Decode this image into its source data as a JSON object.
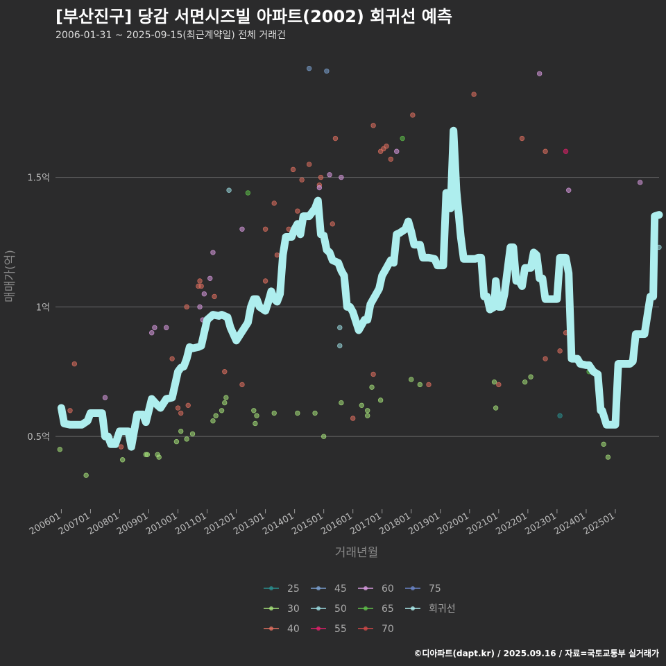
{
  "title": "[부산진구] 당감 서면시즈빌 아파트(2002) 회귀선 예측",
  "subtitle": "2006-01-31 ~ 2025-09-15(최근계약일) 전체 거래건",
  "footer": "©디아파트(dapt.kr) / 2025.09.16 / 자료=국토교통부 실거래가",
  "colors": {
    "background": "#2b2b2c",
    "grid": "#6a6a6a",
    "regression": "#aeeeee",
    "s25": "#2a8f8f",
    "s30": "#a6e27a",
    "s40": "#e07060",
    "s45": "#7aa0d0",
    "s50": "#9adbe0",
    "s55": "#e0206a",
    "s60": "#d89ae0",
    "s65": "#5fc04a",
    "s70": "#d04848",
    "s75": "#6a85c8"
  },
  "chart_data": {
    "type": "scatter",
    "title": "[부산진구] 당감 서면시즈빌 아파트(2002) 회귀선 예측",
    "xlabel": "거래년월",
    "ylabel": "매매가(억)",
    "xlim": [
      2005.8,
      2026.5
    ],
    "ylim": [
      0.23,
      1.97
    ],
    "y_ticks": [
      {
        "value": 0.5,
        "label": "0.5억"
      },
      {
        "value": 1.0,
        "label": "1억"
      },
      {
        "value": 1.5,
        "label": "1.5억"
      }
    ],
    "x_ticks": [
      {
        "value": 2006.0,
        "label": "200601"
      },
      {
        "value": 2007.0,
        "label": "200701"
      },
      {
        "value": 2008.0,
        "label": "200801"
      },
      {
        "value": 2009.0,
        "label": "200901"
      },
      {
        "value": 2010.0,
        "label": "201001"
      },
      {
        "value": 2011.0,
        "label": "201101"
      },
      {
        "value": 2012.0,
        "label": "201201"
      },
      {
        "value": 2013.0,
        "label": "201301"
      },
      {
        "value": 2014.0,
        "label": "201401"
      },
      {
        "value": 2015.0,
        "label": "201501"
      },
      {
        "value": 2016.0,
        "label": "201601"
      },
      {
        "value": 2017.0,
        "label": "201701"
      },
      {
        "value": 2018.0,
        "label": "201801"
      },
      {
        "value": 2019.0,
        "label": "201901"
      },
      {
        "value": 2020.0,
        "label": "202001"
      },
      {
        "value": 2021.0,
        "label": "202101"
      },
      {
        "value": 2022.0,
        "label": "202201"
      },
      {
        "value": 2023.0,
        "label": "202301"
      },
      {
        "value": 2024.0,
        "label": "202401"
      },
      {
        "value": 2025.0,
        "label": "202501"
      }
    ],
    "legend": {
      "position": "bottom",
      "entries": [
        {
          "key": "s25",
          "label": "25"
        },
        {
          "key": "s45",
          "label": "45"
        },
        {
          "key": "s60",
          "label": "60"
        },
        {
          "key": "s75",
          "label": "75"
        },
        {
          "key": "s30",
          "label": "30"
        },
        {
          "key": "s50",
          "label": "50"
        },
        {
          "key": "s65",
          "label": "65"
        },
        {
          "key": "regression",
          "label": "회귀선"
        },
        {
          "key": "s40",
          "label": "40"
        },
        {
          "key": "s55",
          "label": "55"
        },
        {
          "key": "s70",
          "label": "70"
        }
      ]
    },
    "regression": [
      [
        2006.0,
        0.61
      ],
      [
        2006.1,
        0.55
      ],
      [
        2006.3,
        0.545
      ],
      [
        2006.7,
        0.545
      ],
      [
        2006.9,
        0.56
      ],
      [
        2007.0,
        0.59
      ],
      [
        2007.4,
        0.59
      ],
      [
        2007.5,
        0.5
      ],
      [
        2007.6,
        0.5
      ],
      [
        2007.7,
        0.47
      ],
      [
        2007.85,
        0.47
      ],
      [
        2008.0,
        0.52
      ],
      [
        2008.3,
        0.52
      ],
      [
        2008.4,
        0.46
      ],
      [
        2008.6,
        0.585
      ],
      [
        2008.8,
        0.585
      ],
      [
        2008.9,
        0.555
      ],
      [
        2009.0,
        0.6
      ],
      [
        2009.1,
        0.645
      ],
      [
        2009.3,
        0.62
      ],
      [
        2009.4,
        0.61
      ],
      [
        2009.6,
        0.645
      ],
      [
        2009.8,
        0.65
      ],
      [
        2010.0,
        0.75
      ],
      [
        2010.1,
        0.765
      ],
      [
        2010.2,
        0.77
      ],
      [
        2010.3,
        0.8
      ],
      [
        2010.4,
        0.845
      ],
      [
        2010.5,
        0.84
      ],
      [
        2010.7,
        0.845
      ],
      [
        2010.8,
        0.85
      ],
      [
        2010.9,
        0.9
      ],
      [
        2011.0,
        0.95
      ],
      [
        2011.2,
        0.97
      ],
      [
        2011.4,
        0.965
      ],
      [
        2011.5,
        0.97
      ],
      [
        2011.7,
        0.96
      ],
      [
        2011.8,
        0.92
      ],
      [
        2012.0,
        0.87
      ],
      [
        2012.2,
        0.905
      ],
      [
        2012.4,
        0.94
      ],
      [
        2012.5,
        1.0
      ],
      [
        2012.6,
        1.03
      ],
      [
        2012.7,
        1.03
      ],
      [
        2012.8,
        1.0
      ],
      [
        2013.0,
        0.985
      ],
      [
        2013.1,
        1.02
      ],
      [
        2013.2,
        1.06
      ],
      [
        2013.3,
        1.03
      ],
      [
        2013.4,
        1.02
      ],
      [
        2013.5,
        1.05
      ],
      [
        2013.6,
        1.2
      ],
      [
        2013.7,
        1.27
      ],
      [
        2013.9,
        1.27
      ],
      [
        2014.0,
        1.3
      ],
      [
        2014.1,
        1.32
      ],
      [
        2014.2,
        1.28
      ],
      [
        2014.3,
        1.35
      ],
      [
        2014.5,
        1.35
      ],
      [
        2014.7,
        1.38
      ],
      [
        2014.8,
        1.41
      ],
      [
        2014.9,
        1.28
      ],
      [
        2015.0,
        1.275
      ],
      [
        2015.1,
        1.22
      ],
      [
        2015.2,
        1.21
      ],
      [
        2015.3,
        1.18
      ],
      [
        2015.5,
        1.17
      ],
      [
        2015.6,
        1.14
      ],
      [
        2015.7,
        1.12
      ],
      [
        2015.8,
        1.0
      ],
      [
        2015.9,
        1.0
      ],
      [
        2016.0,
        0.98
      ],
      [
        2016.2,
        0.91
      ],
      [
        2016.4,
        0.95
      ],
      [
        2016.5,
        0.95
      ],
      [
        2016.6,
        1.01
      ],
      [
        2016.7,
        1.03
      ],
      [
        2016.8,
        1.05
      ],
      [
        2016.9,
        1.07
      ],
      [
        2017.0,
        1.12
      ],
      [
        2017.1,
        1.14
      ],
      [
        2017.3,
        1.18
      ],
      [
        2017.4,
        1.17
      ],
      [
        2017.5,
        1.28
      ],
      [
        2017.6,
        1.285
      ],
      [
        2017.8,
        1.3
      ],
      [
        2017.9,
        1.33
      ],
      [
        2018.0,
        1.29
      ],
      [
        2018.1,
        1.24
      ],
      [
        2018.3,
        1.24
      ],
      [
        2018.4,
        1.19
      ],
      [
        2018.6,
        1.19
      ],
      [
        2018.8,
        1.185
      ],
      [
        2018.9,
        1.16
      ],
      [
        2019.1,
        1.16
      ],
      [
        2019.2,
        1.44
      ],
      [
        2019.35,
        1.38
      ],
      [
        2019.45,
        1.68
      ],
      [
        2019.55,
        1.45
      ],
      [
        2019.7,
        1.27
      ],
      [
        2019.8,
        1.185
      ],
      [
        2020.0,
        1.185
      ],
      [
        2020.2,
        1.185
      ],
      [
        2020.3,
        1.19
      ],
      [
        2020.4,
        1.19
      ],
      [
        2020.5,
        1.04
      ],
      [
        2020.6,
        1.04
      ],
      [
        2020.7,
        0.99
      ],
      [
        2020.85,
        1.0
      ],
      [
        2020.9,
        1.1
      ],
      [
        2021.0,
        1.0
      ],
      [
        2021.1,
        1.0
      ],
      [
        2021.2,
        1.05
      ],
      [
        2021.3,
        1.14
      ],
      [
        2021.4,
        1.23
      ],
      [
        2021.5,
        1.23
      ],
      [
        2021.6,
        1.1
      ],
      [
        2021.7,
        1.1
      ],
      [
        2021.8,
        1.08
      ],
      [
        2021.9,
        1.15
      ],
      [
        2022.1,
        1.15
      ],
      [
        2022.2,
        1.21
      ],
      [
        2022.3,
        1.2
      ],
      [
        2022.4,
        1.11
      ],
      [
        2022.5,
        1.11
      ],
      [
        2022.6,
        1.03
      ],
      [
        2022.7,
        1.03
      ],
      [
        2022.9,
        1.03
      ],
      [
        2023.0,
        1.03
      ],
      [
        2023.1,
        1.19
      ],
      [
        2023.3,
        1.19
      ],
      [
        2023.4,
        1.13
      ],
      [
        2023.5,
        0.8
      ],
      [
        2023.6,
        0.8
      ],
      [
        2023.7,
        0.8
      ],
      [
        2023.8,
        0.78
      ],
      [
        2024.0,
        0.775
      ],
      [
        2024.1,
        0.775
      ],
      [
        2024.25,
        0.75
      ],
      [
        2024.4,
        0.74
      ],
      [
        2024.5,
        0.6
      ],
      [
        2024.55,
        0.6
      ],
      [
        2024.7,
        0.545
      ],
      [
        2024.9,
        0.545
      ],
      [
        2025.0,
        0.545
      ],
      [
        2025.1,
        0.78
      ],
      [
        2025.2,
        0.78
      ],
      [
        2025.4,
        0.78
      ],
      [
        2025.5,
        0.78
      ],
      [
        2025.6,
        0.79
      ],
      [
        2025.7,
        0.895
      ],
      [
        2025.8,
        0.895
      ],
      [
        2026.0,
        0.895
      ],
      [
        2026.2,
        1.04
      ],
      [
        2026.3,
        1.04
      ],
      [
        2026.35,
        1.35
      ],
      [
        2026.5,
        1.355
      ]
    ],
    "points": [
      {
        "s": "s30",
        "x": 2005.95,
        "y": 0.45
      },
      {
        "s": "s40",
        "x": 2006.3,
        "y": 0.6
      },
      {
        "s": "s40",
        "x": 2006.45,
        "y": 0.78
      },
      {
        "s": "s30",
        "x": 2006.85,
        "y": 0.35
      },
      {
        "s": "s60",
        "x": 2007.5,
        "y": 0.65
      },
      {
        "s": "s30",
        "x": 2008.1,
        "y": 0.41
      },
      {
        "s": "s40",
        "x": 2008.05,
        "y": 0.46
      },
      {
        "s": "s30",
        "x": 2008.9,
        "y": 0.43
      },
      {
        "s": "s30",
        "x": 2008.95,
        "y": 0.43
      },
      {
        "s": "s60",
        "x": 2009.1,
        "y": 0.9
      },
      {
        "s": "s60",
        "x": 2009.2,
        "y": 0.92
      },
      {
        "s": "s30",
        "x": 2009.35,
        "y": 0.42
      },
      {
        "s": "s30",
        "x": 2009.3,
        "y": 0.43
      },
      {
        "s": "s60",
        "x": 2009.6,
        "y": 0.92
      },
      {
        "s": "s40",
        "x": 2009.8,
        "y": 0.8
      },
      {
        "s": "s30",
        "x": 2009.95,
        "y": 0.48
      },
      {
        "s": "s40",
        "x": 2010.0,
        "y": 0.61
      },
      {
        "s": "s40",
        "x": 2010.1,
        "y": 0.59
      },
      {
        "s": "s30",
        "x": 2010.1,
        "y": 0.52
      },
      {
        "s": "s30",
        "x": 2010.3,
        "y": 0.49
      },
      {
        "s": "s40",
        "x": 2010.35,
        "y": 0.62
      },
      {
        "s": "s40",
        "x": 2010.3,
        "y": 1.0
      },
      {
        "s": "s30",
        "x": 2010.5,
        "y": 0.51
      },
      {
        "s": "s40",
        "x": 2010.7,
        "y": 1.08
      },
      {
        "s": "s40",
        "x": 2010.75,
        "y": 1.1
      },
      {
        "s": "s40",
        "x": 2010.8,
        "y": 1.08
      },
      {
        "s": "s60",
        "x": 2010.75,
        "y": 1.0
      },
      {
        "s": "s60",
        "x": 2010.9,
        "y": 1.05
      },
      {
        "s": "s60",
        "x": 2010.85,
        "y": 0.95
      },
      {
        "s": "s60",
        "x": 2011.1,
        "y": 1.11
      },
      {
        "s": "s60",
        "x": 2011.2,
        "y": 1.21
      },
      {
        "s": "s40",
        "x": 2011.25,
        "y": 1.04
      },
      {
        "s": "s30",
        "x": 2011.2,
        "y": 0.56
      },
      {
        "s": "s30",
        "x": 2011.3,
        "y": 0.58
      },
      {
        "s": "s30",
        "x": 2011.5,
        "y": 0.6
      },
      {
        "s": "s30",
        "x": 2011.6,
        "y": 0.63
      },
      {
        "s": "s30",
        "x": 2011.65,
        "y": 0.65
      },
      {
        "s": "s40",
        "x": 2011.6,
        "y": 0.75
      },
      {
        "s": "s50",
        "x": 2011.75,
        "y": 1.45
      },
      {
        "s": "s40",
        "x": 2012.2,
        "y": 0.7
      },
      {
        "s": "s60",
        "x": 2012.2,
        "y": 1.3
      },
      {
        "s": "s65",
        "x": 2012.4,
        "y": 1.44
      },
      {
        "s": "s30",
        "x": 2012.6,
        "y": 0.6
      },
      {
        "s": "s30",
        "x": 2012.65,
        "y": 0.55
      },
      {
        "s": "s30",
        "x": 2012.7,
        "y": 0.58
      },
      {
        "s": "s40",
        "x": 2013.0,
        "y": 1.3
      },
      {
        "s": "s40",
        "x": 2013.0,
        "y": 1.1
      },
      {
        "s": "s40",
        "x": 2013.3,
        "y": 1.4
      },
      {
        "s": "s40",
        "x": 2013.4,
        "y": 1.2
      },
      {
        "s": "s30",
        "x": 2013.3,
        "y": 0.59
      },
      {
        "s": "s40",
        "x": 2013.8,
        "y": 1.3
      },
      {
        "s": "s40",
        "x": 2013.95,
        "y": 1.53
      },
      {
        "s": "s40",
        "x": 2014.1,
        "y": 1.37
      },
      {
        "s": "s40",
        "x": 2014.25,
        "y": 1.49
      },
      {
        "s": "s40",
        "x": 2014.5,
        "y": 1.55
      },
      {
        "s": "s30",
        "x": 2014.1,
        "y": 0.59
      },
      {
        "s": "s30",
        "x": 2014.7,
        "y": 0.59
      },
      {
        "s": "s45",
        "x": 2014.5,
        "y": 1.92
      },
      {
        "s": "s40",
        "x": 2014.85,
        "y": 1.47
      },
      {
        "s": "s40",
        "x": 2014.9,
        "y": 1.5
      },
      {
        "s": "s60",
        "x": 2014.85,
        "y": 1.46
      },
      {
        "s": "s30",
        "x": 2015.0,
        "y": 0.5
      },
      {
        "s": "s45",
        "x": 2015.1,
        "y": 1.91
      },
      {
        "s": "s60",
        "x": 2015.2,
        "y": 1.51
      },
      {
        "s": "s40",
        "x": 2015.3,
        "y": 1.32
      },
      {
        "s": "s40",
        "x": 2015.4,
        "y": 1.65
      },
      {
        "s": "s50",
        "x": 2015.55,
        "y": 0.92
      },
      {
        "s": "s50",
        "x": 2015.55,
        "y": 0.85
      },
      {
        "s": "s30",
        "x": 2015.6,
        "y": 0.63
      },
      {
        "s": "s60",
        "x": 2015.6,
        "y": 1.5
      },
      {
        "s": "s40",
        "x": 2016.0,
        "y": 0.57
      },
      {
        "s": "s30",
        "x": 2016.3,
        "y": 0.62
      },
      {
        "s": "s30",
        "x": 2016.5,
        "y": 0.58
      },
      {
        "s": "s30",
        "x": 2016.5,
        "y": 0.6
      },
      {
        "s": "s30",
        "x": 2016.65,
        "y": 0.69
      },
      {
        "s": "s40",
        "x": 2016.7,
        "y": 0.74
      },
      {
        "s": "s40",
        "x": 2016.7,
        "y": 1.7
      },
      {
        "s": "s40",
        "x": 2016.95,
        "y": 1.6
      },
      {
        "s": "s40",
        "x": 2017.05,
        "y": 1.61
      },
      {
        "s": "s40",
        "x": 2017.15,
        "y": 1.62
      },
      {
        "s": "s30",
        "x": 2016.95,
        "y": 0.64
      },
      {
        "s": "s40",
        "x": 2017.3,
        "y": 1.57
      },
      {
        "s": "s60",
        "x": 2017.5,
        "y": 1.6
      },
      {
        "s": "s65",
        "x": 2017.7,
        "y": 1.65
      },
      {
        "s": "s40",
        "x": 2018.05,
        "y": 1.74
      },
      {
        "s": "s30",
        "x": 2018.0,
        "y": 0.72
      },
      {
        "s": "s30",
        "x": 2018.3,
        "y": 0.7
      },
      {
        "s": "s40",
        "x": 2018.6,
        "y": 0.7
      },
      {
        "s": "s40",
        "x": 2020.15,
        "y": 1.82
      },
      {
        "s": "s30",
        "x": 2020.85,
        "y": 0.71
      },
      {
        "s": "s30",
        "x": 2020.9,
        "y": 0.61
      },
      {
        "s": "s40",
        "x": 2021.0,
        "y": 0.7
      },
      {
        "s": "s40",
        "x": 2021.8,
        "y": 1.65
      },
      {
        "s": "s30",
        "x": 2021.9,
        "y": 0.71
      },
      {
        "s": "s30",
        "x": 2022.1,
        "y": 0.73
      },
      {
        "s": "s60",
        "x": 2022.4,
        "y": 1.9
      },
      {
        "s": "s40",
        "x": 2022.6,
        "y": 1.6
      },
      {
        "s": "s40",
        "x": 2022.6,
        "y": 0.8
      },
      {
        "s": "s25",
        "x": 2023.1,
        "y": 0.58
      },
      {
        "s": "s40",
        "x": 2023.1,
        "y": 0.83
      },
      {
        "s": "s40",
        "x": 2023.3,
        "y": 0.9
      },
      {
        "s": "s55",
        "x": 2023.3,
        "y": 1.6
      },
      {
        "s": "s60",
        "x": 2023.4,
        "y": 1.45
      },
      {
        "s": "s65",
        "x": 2024.1,
        "y": 0.75
      },
      {
        "s": "s30",
        "x": 2024.6,
        "y": 0.47
      },
      {
        "s": "s30",
        "x": 2024.75,
        "y": 0.42
      },
      {
        "s": "s60",
        "x": 2025.85,
        "y": 1.48
      },
      {
        "s": "s50",
        "x": 2026.5,
        "y": 1.23
      }
    ]
  }
}
